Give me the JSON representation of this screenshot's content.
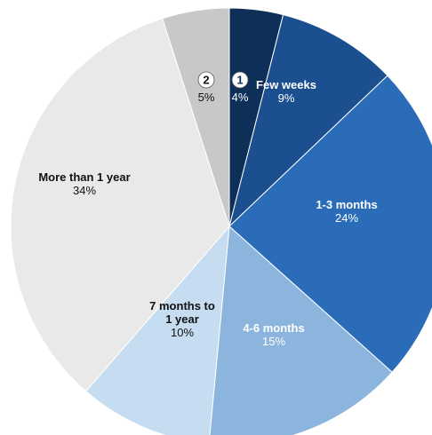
{
  "chart_data": {
    "type": "pie",
    "title": "",
    "start": "12 o'clock",
    "direction": "clockwise",
    "slices": [
      {
        "name": "",
        "badge": "1",
        "label": "4%",
        "value": 4,
        "color": "#0e2f57",
        "text_color": "#ffffff",
        "badge_fill": "#ffffff",
        "badge_text_color": "#0e2f57"
      },
      {
        "name": "Few weeks",
        "label": "9%",
        "value": 9,
        "color": "#1b4f8f",
        "text_color": "#ffffff"
      },
      {
        "name": "1-3 months",
        "label": "24%",
        "value": 24,
        "color": "#2b6cb8",
        "text_color": "#ffffff"
      },
      {
        "name": "4-6 months",
        "label": "15%",
        "value": 15,
        "color": "#8cb5de",
        "text_color": "#ffffff"
      },
      {
        "name": "7 months to 1 year",
        "label": "10%",
        "value": 10,
        "color": "#c6dcf0",
        "text_color": "#111111"
      },
      {
        "name": "More than 1 year",
        "label": "34%",
        "value": 34,
        "color": "#e9e9e9",
        "text_color": "#111111"
      },
      {
        "name": "",
        "badge": "2",
        "label": "5%",
        "value": 5,
        "color": "#c8c8c8",
        "text_color": "#111111",
        "badge_fill": "#ffffff",
        "badge_text_color": "#111111"
      }
    ]
  }
}
